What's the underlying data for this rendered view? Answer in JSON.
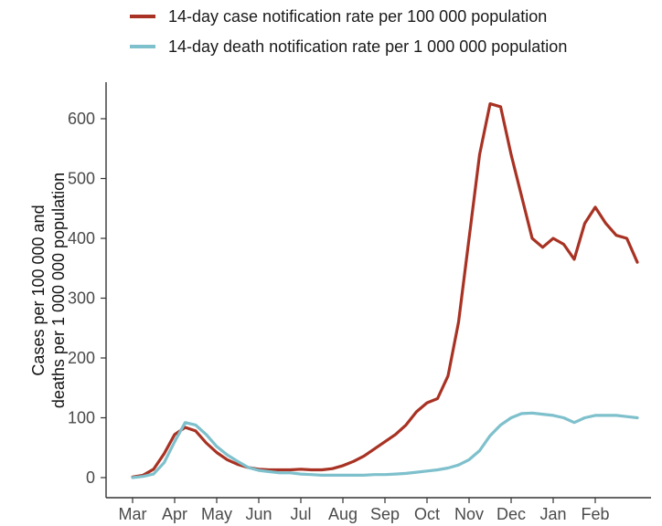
{
  "chart_data": {
    "type": "line",
    "x_ticks": [
      "Mar",
      "Apr",
      "May",
      "Jun",
      "Jul",
      "Aug",
      "Sep",
      "Oct",
      "Nov",
      "Dec",
      "Jan",
      "Feb"
    ],
    "ylabel_lines": [
      "Cases per 100 000 and",
      "deaths per 1 000 000 population"
    ],
    "xlabel": "",
    "ylim": [
      0,
      650
    ],
    "y_ticks": [
      0,
      100,
      200,
      300,
      400,
      500,
      600
    ],
    "grid": false,
    "legend_position": "top",
    "series": [
      {
        "name": "14-day case notification rate per 100 000 population",
        "color": "#a83223",
        "x": [
          0,
          0.25,
          0.5,
          0.75,
          1,
          1.25,
          1.5,
          1.75,
          2,
          2.25,
          2.5,
          2.75,
          3,
          3.25,
          3.5,
          3.75,
          4,
          4.25,
          4.5,
          4.75,
          5,
          5.25,
          5.5,
          5.75,
          6,
          6.25,
          6.5,
          6.75,
          7,
          7.25,
          7.5,
          7.75,
          8,
          8.25,
          8.5,
          8.75,
          9,
          9.25,
          9.5,
          9.75,
          10,
          10.25,
          10.5,
          10.75,
          11,
          11.25,
          11.5,
          11.75,
          12
        ],
        "values": [
          1,
          4,
          14,
          40,
          72,
          84,
          78,
          58,
          42,
          30,
          22,
          17,
          14,
          13,
          13,
          13,
          14,
          13,
          13,
          15,
          20,
          27,
          36,
          48,
          60,
          72,
          88,
          110,
          125,
          132,
          170,
          260,
          400,
          540,
          625,
          620,
          540,
          470,
          400,
          385,
          400,
          390,
          365,
          425,
          452,
          425,
          405,
          400,
          360
        ]
      },
      {
        "name": "14-day death notification rate per 1 000 000 population",
        "color": "#7ec0cc",
        "x": [
          0,
          0.25,
          0.5,
          0.75,
          1,
          1.25,
          1.5,
          1.75,
          2,
          2.25,
          2.5,
          2.75,
          3,
          3.25,
          3.5,
          3.75,
          4,
          4.25,
          4.5,
          4.75,
          5,
          5.25,
          5.5,
          5.75,
          6,
          6.25,
          6.5,
          6.75,
          7,
          7.25,
          7.5,
          7.75,
          8,
          8.25,
          8.5,
          8.75,
          9,
          9.25,
          9.5,
          9.75,
          10,
          10.25,
          10.5,
          10.75,
          11,
          11.25,
          11.5,
          11.75,
          12
        ],
        "values": [
          0,
          2,
          6,
          25,
          60,
          92,
          88,
          72,
          52,
          38,
          27,
          17,
          12,
          10,
          8,
          8,
          6,
          5,
          4,
          4,
          4,
          4,
          4,
          5,
          5,
          6,
          7,
          9,
          11,
          13,
          16,
          21,
          30,
          45,
          70,
          88,
          100,
          107,
          108,
          106,
          104,
          100,
          92,
          100,
          104,
          104,
          104,
          102,
          100
        ]
      }
    ]
  }
}
